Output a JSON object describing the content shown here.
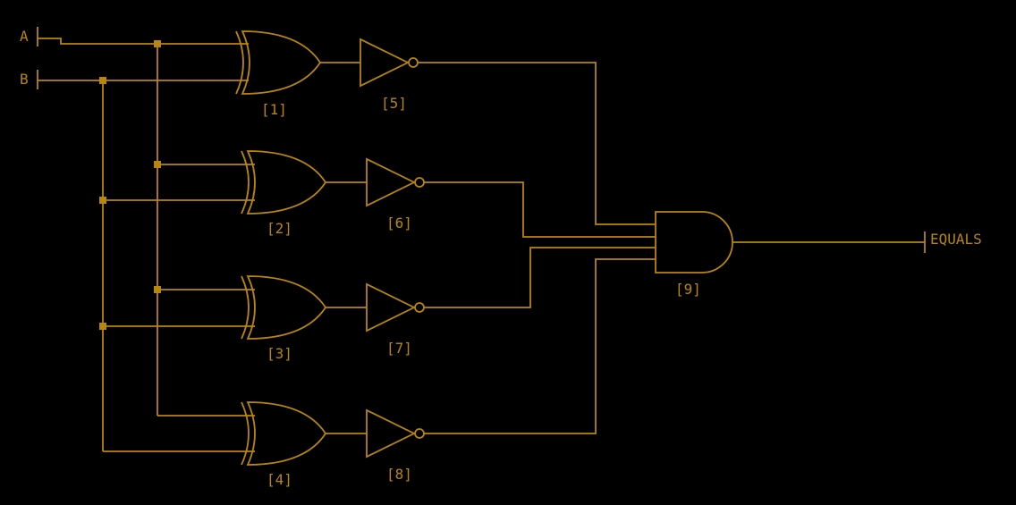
{
  "diagram": {
    "title": "",
    "colors": {
      "background": "#000000",
      "wire": "#b8860b"
    },
    "inputs": [
      {
        "id": "A",
        "label": "A"
      },
      {
        "id": "B",
        "label": "B"
      }
    ],
    "output": {
      "id": "EQUALS",
      "label": "EQUALS",
      "driven_by": "9"
    },
    "gates": [
      {
        "id": "1",
        "label": "[1]",
        "type": "xor",
        "inputs": [
          "A",
          "B"
        ]
      },
      {
        "id": "2",
        "label": "[2]",
        "type": "xor",
        "inputs": [
          "A",
          "B"
        ]
      },
      {
        "id": "3",
        "label": "[3]",
        "type": "xor",
        "inputs": [
          "A",
          "B"
        ]
      },
      {
        "id": "4",
        "label": "[4]",
        "type": "xor",
        "inputs": [
          "A",
          "B"
        ]
      },
      {
        "id": "5",
        "label": "[5]",
        "type": "not",
        "inputs": [
          "1"
        ]
      },
      {
        "id": "6",
        "label": "[6]",
        "type": "not",
        "inputs": [
          "2"
        ]
      },
      {
        "id": "7",
        "label": "[7]",
        "type": "not",
        "inputs": [
          "3"
        ]
      },
      {
        "id": "8",
        "label": "[8]",
        "type": "not",
        "inputs": [
          "4"
        ]
      },
      {
        "id": "9",
        "label": "[9]",
        "type": "and",
        "inputs": [
          "5",
          "6",
          "7",
          "8"
        ]
      }
    ]
  }
}
